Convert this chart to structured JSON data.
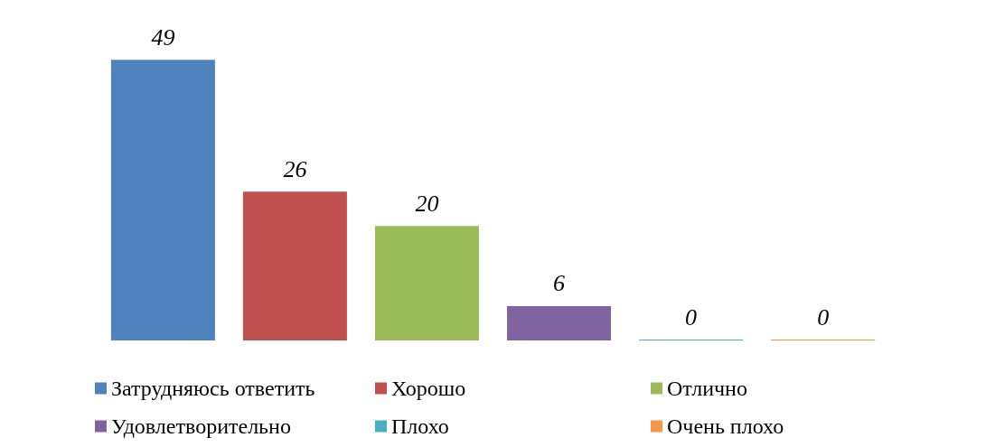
{
  "chart_data": {
    "type": "bar",
    "categories": [
      null
    ],
    "series": [
      {
        "name": "Затрудняюсь ответить",
        "color": "#4f81bd",
        "values": [
          49
        ]
      },
      {
        "name": "Хорошо",
        "color": "#c0504d",
        "values": [
          26
        ]
      },
      {
        "name": "Отлично",
        "color": "#9bbb59",
        "values": [
          20
        ]
      },
      {
        "name": "Удовлетворительно",
        "color": "#8064a2",
        "values": [
          6
        ]
      },
      {
        "name": "Плохо",
        "color": "#4bacc6",
        "values": [
          0
        ]
      },
      {
        "name": "Очень плохо",
        "color": "#f79646",
        "values": [
          0
        ]
      }
    ],
    "data_labels": true,
    "legend": "bottom",
    "tick_labels": false
  }
}
